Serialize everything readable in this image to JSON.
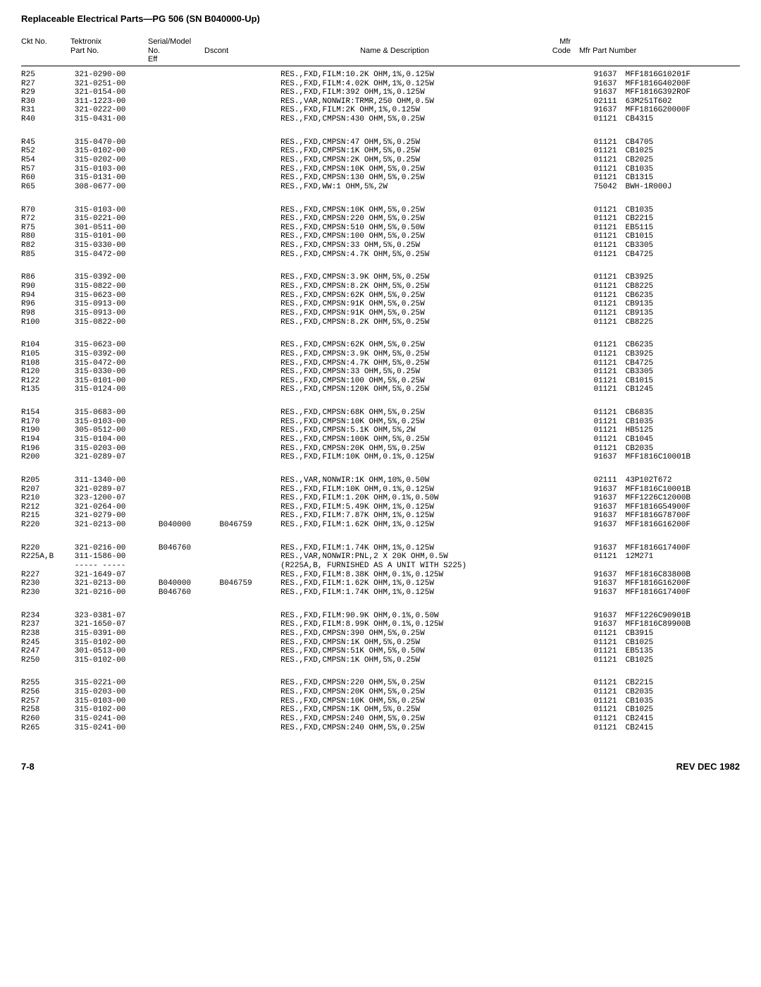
{
  "page_title": "Replaceable Electrical Parts—PG 506 (SN B040000-Up)",
  "header": {
    "ckt": "Ckt No.",
    "tektronix": "Tektronix",
    "part": "Part No.",
    "serial": "Serial/Model No.",
    "eff": "Eff",
    "dscont": "Dscont",
    "name": "Name & Description",
    "mfr": "Mfr",
    "code": "Code",
    "mfrpn": "Mfr Part Number"
  },
  "footer_left": "7-8",
  "footer_right": "REV DEC 1982",
  "groups": [
    [
      {
        "ckt": "R25",
        "part": "321-0290-00",
        "eff": "",
        "dscont": "",
        "desc": "RES.,FXD,FILM:10.2K OHM,1%,0.125W",
        "mfr": "91637",
        "mfrpn": "MFF1816G10201F"
      },
      {
        "ckt": "R27",
        "part": "321-0251-00",
        "eff": "",
        "dscont": "",
        "desc": "RES.,FXD,FILM:4.02K OHM,1%,0.125W",
        "mfr": "91637",
        "mfrpn": "MFF1816G40200F"
      },
      {
        "ckt": "R29",
        "part": "321-0154-00",
        "eff": "",
        "dscont": "",
        "desc": "RES.,FXD,FILM:392 OHM,1%,0.125W",
        "mfr": "91637",
        "mfrpn": "MFF1816G392ROF"
      },
      {
        "ckt": "R30",
        "part": "311-1223-00",
        "eff": "",
        "dscont": "",
        "desc": "RES.,VAR,NONWIR:TRMR,250 OHM,0.5W",
        "mfr": "02111",
        "mfrpn": "63M251T602"
      },
      {
        "ckt": "R31",
        "part": "321-0222-00",
        "eff": "",
        "dscont": "",
        "desc": "RES.,FXD,FILM:2K OHM,1%,0.125W",
        "mfr": "91637",
        "mfrpn": "MFF1816G20000F"
      },
      {
        "ckt": "R40",
        "part": "315-0431-00",
        "eff": "",
        "dscont": "",
        "desc": "RES.,FXD,CMPSN:430 OHM,5%,0.25W",
        "mfr": "01121",
        "mfrpn": "CB4315"
      }
    ],
    [
      {
        "ckt": "R45",
        "part": "315-0470-00",
        "eff": "",
        "dscont": "",
        "desc": "RES.,FXD,CMPSN:47 OHM,5%,0.25W",
        "mfr": "01121",
        "mfrpn": "CB4705"
      },
      {
        "ckt": "R52",
        "part": "315-0102-00",
        "eff": "",
        "dscont": "",
        "desc": "RES.,FXD,CMPSN:1K OHM,5%,0.25W",
        "mfr": "01121",
        "mfrpn": "CB1025"
      },
      {
        "ckt": "R54",
        "part": "315-0202-00",
        "eff": "",
        "dscont": "",
        "desc": "RES.,FXD,CMPSN:2K OHM,5%,0.25W",
        "mfr": "01121",
        "mfrpn": "CB2025"
      },
      {
        "ckt": "R57",
        "part": "315-0103-00",
        "eff": "",
        "dscont": "",
        "desc": "RES.,FXD,CMPSN:10K OHM,5%,0.25W",
        "mfr": "01121",
        "mfrpn": "CB1035"
      },
      {
        "ckt": "R60",
        "part": "315-0131-00",
        "eff": "",
        "dscont": "",
        "desc": "RES.,FXD,CMPSN:130 OHM,5%,0.25W",
        "mfr": "01121",
        "mfrpn": "CB1315"
      },
      {
        "ckt": "R65",
        "part": "308-0677-00",
        "eff": "",
        "dscont": "",
        "desc": "RES.,FXD,WW:1 OHM,5%,2W",
        "mfr": "75042",
        "mfrpn": "BWH-1R000J"
      }
    ],
    [
      {
        "ckt": "R70",
        "part": "315-0103-00",
        "eff": "",
        "dscont": "",
        "desc": "RES.,FXD,CMPSN:10K OHM,5%,0.25W",
        "mfr": "01121",
        "mfrpn": "CB1035"
      },
      {
        "ckt": "R72",
        "part": "315-0221-00",
        "eff": "",
        "dscont": "",
        "desc": "RES.,FXD,CMPSN:220 OHM,5%,0.25W",
        "mfr": "01121",
        "mfrpn": "CB2215"
      },
      {
        "ckt": "R75",
        "part": "301-0511-00",
        "eff": "",
        "dscont": "",
        "desc": "RES.,FXD,CMPSN:510 OHM,5%,0.50W",
        "mfr": "01121",
        "mfrpn": "EB5115"
      },
      {
        "ckt": "R80",
        "part": "315-0101-00",
        "eff": "",
        "dscont": "",
        "desc": "RES.,FXD,CMPSN:100 OHM,5%,0.25W",
        "mfr": "01121",
        "mfrpn": "CB1015"
      },
      {
        "ckt": "R82",
        "part": "315-0330-00",
        "eff": "",
        "dscont": "",
        "desc": "RES.,FXD,CMPSN:33 OHM,5%,0.25W",
        "mfr": "01121",
        "mfrpn": "CB3305"
      },
      {
        "ckt": "R85",
        "part": "315-0472-00",
        "eff": "",
        "dscont": "",
        "desc": "RES.,FXD,CMPSN:4.7K OHM,5%,0.25W",
        "mfr": "01121",
        "mfrpn": "CB4725"
      }
    ],
    [
      {
        "ckt": "R86",
        "part": "315-0392-00",
        "eff": "",
        "dscont": "",
        "desc": "RES.,FXD,CMPSN:3.9K OHM,5%,0.25W",
        "mfr": "01121",
        "mfrpn": "CB3925"
      },
      {
        "ckt": "R90",
        "part": "315-0822-00",
        "eff": "",
        "dscont": "",
        "desc": "RES.,FXD,CMPSN:8.2K OHM,5%,0.25W",
        "mfr": "01121",
        "mfrpn": "CB8225"
      },
      {
        "ckt": "R94",
        "part": "315-0623-00",
        "eff": "",
        "dscont": "",
        "desc": "RES.,FXD,CMPSN:62K OHM,5%,0.25W",
        "mfr": "01121",
        "mfrpn": "CB6235"
      },
      {
        "ckt": "R96",
        "part": "315-0913-00",
        "eff": "",
        "dscont": "",
        "desc": "RES.,FXD,CMPSN:91K OHM,5%,0.25W",
        "mfr": "01121",
        "mfrpn": "CB9135"
      },
      {
        "ckt": "R98",
        "part": "315-0913-00",
        "eff": "",
        "dscont": "",
        "desc": "RES.,FXD,CMPSN:91K OHM,5%,0.25W",
        "mfr": "01121",
        "mfrpn": "CB9135"
      },
      {
        "ckt": "R100",
        "part": "315-0822-00",
        "eff": "",
        "dscont": "",
        "desc": "RES.,FXD,CMPSN:8.2K OHM,5%,0.25W",
        "mfr": "01121",
        "mfrpn": "CB8225"
      }
    ],
    [
      {
        "ckt": "R104",
        "part": "315-0623-00",
        "eff": "",
        "dscont": "",
        "desc": "RES.,FXD,CMPSN:62K OHM,5%,0.25W",
        "mfr": "01121",
        "mfrpn": "CB6235"
      },
      {
        "ckt": "R105",
        "part": "315-0392-00",
        "eff": "",
        "dscont": "",
        "desc": "RES.,FXD,CMPSN:3.9K OHM,5%,0.25W",
        "mfr": "01121",
        "mfrpn": "CB3925"
      },
      {
        "ckt": "R108",
        "part": "315-0472-00",
        "eff": "",
        "dscont": "",
        "desc": "RES.,FXD,CMPSN:4.7K OHM,5%,0.25W",
        "mfr": "01121",
        "mfrpn": "CB4725"
      },
      {
        "ckt": "R120",
        "part": "315-0330-00",
        "eff": "",
        "dscont": "",
        "desc": "RES.,FXD,CMPSN:33 OHM,5%,0.25W",
        "mfr": "01121",
        "mfrpn": "CB3305"
      },
      {
        "ckt": "R122",
        "part": "315-0101-00",
        "eff": "",
        "dscont": "",
        "desc": "RES.,FXD,CMPSN:100 OHM,5%,0.25W",
        "mfr": "01121",
        "mfrpn": "CB1015"
      },
      {
        "ckt": "R135",
        "part": "315-0124-00",
        "eff": "",
        "dscont": "",
        "desc": "RES.,FXD,CMPSN:120K OHM,5%,0.25W",
        "mfr": "01121",
        "mfrpn": "CB1245"
      }
    ],
    [
      {
        "ckt": "R154",
        "part": "315-0683-00",
        "eff": "",
        "dscont": "",
        "desc": "RES.,FXD,CMPSN:68K OHM,5%,0.25W",
        "mfr": "01121",
        "mfrpn": "CB6835"
      },
      {
        "ckt": "R170",
        "part": "315-0103-00",
        "eff": "",
        "dscont": "",
        "desc": "RES.,FXD,CMPSN:10K OHM,5%,0.25W",
        "mfr": "01121",
        "mfrpn": "CB1035"
      },
      {
        "ckt": "R190",
        "part": "305-0512-00",
        "eff": "",
        "dscont": "",
        "desc": "RES.,FXD,CMPSN:5.1K OHM,5%,2W",
        "mfr": "01121",
        "mfrpn": "HB5125"
      },
      {
        "ckt": "R194",
        "part": "315-0104-00",
        "eff": "",
        "dscont": "",
        "desc": "RES.,FXD,CMPSN:100K OHM,5%,0.25W",
        "mfr": "01121",
        "mfrpn": "CB1045"
      },
      {
        "ckt": "R196",
        "part": "315-0203-00",
        "eff": "",
        "dscont": "",
        "desc": "RES.,FXD,CMPSN:20K OHM,5%,0.25W",
        "mfr": "01121",
        "mfrpn": "CB2035"
      },
      {
        "ckt": "R200",
        "part": "321-0289-07",
        "eff": "",
        "dscont": "",
        "desc": "RES.,FXD,FILM:10K OHM,0.1%,0.125W",
        "mfr": "91637",
        "mfrpn": "MFF1816C10001B"
      }
    ],
    [
      {
        "ckt": "R205",
        "part": "311-1340-00",
        "eff": "",
        "dscont": "",
        "desc": "RES.,VAR,NONWIR:1K OHM,10%,0.50W",
        "mfr": "02111",
        "mfrpn": "43P102T672"
      },
      {
        "ckt": "R207",
        "part": "321-0289-07",
        "eff": "",
        "dscont": "",
        "desc": "RES.,FXD,FILM:10K OHM,0.1%,0.125W",
        "mfr": "91637",
        "mfrpn": "MFF1816C10001B"
      },
      {
        "ckt": "R210",
        "part": "323-1200-07",
        "eff": "",
        "dscont": "",
        "desc": "RES.,FXD,FILM:1.20K OHM,0.1%,0.50W",
        "mfr": "91637",
        "mfrpn": "MFF1226C12000B"
      },
      {
        "ckt": "R212",
        "part": "321-0264-00",
        "eff": "",
        "dscont": "",
        "desc": "RES.,FXD,FILM:5.49K OHM,1%,0.125W",
        "mfr": "91637",
        "mfrpn": "MFF1816G54900F"
      },
      {
        "ckt": "R215",
        "part": "321-0279-00",
        "eff": "",
        "dscont": "",
        "desc": "RES.,FXD,FILM:7.87K OHM,1%,0.125W",
        "mfr": "91637",
        "mfrpn": "MFF1816G78700F"
      },
      {
        "ckt": "R220",
        "part": "321-0213-00",
        "eff": "B040000",
        "dscont": "B046759",
        "desc": "RES.,FXD,FILM:1.62K OHM,1%,0.125W",
        "mfr": "91637",
        "mfrpn": "MFF1816G16200F"
      }
    ],
    [
      {
        "ckt": "R220",
        "part": "321-0216-00",
        "eff": "B046760",
        "dscont": "",
        "desc": "RES.,FXD,FILM:1.74K OHM,1%,0.125W",
        "mfr": "91637",
        "mfrpn": "MFF1816G17400F"
      },
      {
        "ckt": "R225A,B",
        "part": "311-1586-00",
        "eff": "",
        "dscont": "",
        "desc": "RES.,VAR,NONWIR:PNL,2 X 20K OHM,0.5W",
        "mfr": "01121",
        "mfrpn": "12M271"
      },
      {
        "ckt": "",
        "part": "----- -----",
        "eff": "",
        "dscont": "",
        "desc": "(R225A,B, FURNISHED AS A UNIT WITH S225)",
        "mfr": "",
        "mfrpn": ""
      },
      {
        "ckt": "R227",
        "part": "321-1649-07",
        "eff": "",
        "dscont": "",
        "desc": "RES.,FXD,FILM:8.38K OHM,0.1%,0.125W",
        "mfr": "91637",
        "mfrpn": "MFF1816C83800B"
      },
      {
        "ckt": "R230",
        "part": "321-0213-00",
        "eff": "B040000",
        "dscont": "B046759",
        "desc": "RES.,FXD,FILM:1.62K OHM,1%,0.125W",
        "mfr": "91637",
        "mfrpn": "MFF1816G16200F"
      },
      {
        "ckt": "R230",
        "part": "321-0216-00",
        "eff": "B046760",
        "dscont": "",
        "desc": "RES.,FXD,FILM:1.74K OHM,1%,0.125W",
        "mfr": "91637",
        "mfrpn": "MFF1816G17400F"
      }
    ],
    [
      {
        "ckt": "R234",
        "part": "323-0381-07",
        "eff": "",
        "dscont": "",
        "desc": "RES.,FXD,FILM:90.9K OHM,0.1%,0.50W",
        "mfr": "91637",
        "mfrpn": "MFF1226C90901B"
      },
      {
        "ckt": "R237",
        "part": "321-1650-07",
        "eff": "",
        "dscont": "",
        "desc": "RES.,FXD,FILM:8.99K OHM,0.1%,0.125W",
        "mfr": "91637",
        "mfrpn": "MFF1816C89900B"
      },
      {
        "ckt": "R238",
        "part": "315-0391-00",
        "eff": "",
        "dscont": "",
        "desc": "RES.,FXD,CMPSN:390 OHM,5%,0.25W",
        "mfr": "01121",
        "mfrpn": "CB3915"
      },
      {
        "ckt": "R245",
        "part": "315-0102-00",
        "eff": "",
        "dscont": "",
        "desc": "RES.,FXD,CMPSN:1K OHM,5%,0.25W",
        "mfr": "01121",
        "mfrpn": "CB1025"
      },
      {
        "ckt": "R247",
        "part": "301-0513-00",
        "eff": "",
        "dscont": "",
        "desc": "RES.,FXD,CMPSN:51K OHM,5%,0.50W",
        "mfr": "01121",
        "mfrpn": "EB5135"
      },
      {
        "ckt": "R250",
        "part": "315-0102-00",
        "eff": "",
        "dscont": "",
        "desc": "RES.,FXD,CMPSN:1K OHM,5%,0.25W",
        "mfr": "01121",
        "mfrpn": "CB1025"
      }
    ],
    [
      {
        "ckt": "R255",
        "part": "315-0221-00",
        "eff": "",
        "dscont": "",
        "desc": "RES.,FXD,CMPSN:220 OHM,5%,0.25W",
        "mfr": "01121",
        "mfrpn": "CB2215"
      },
      {
        "ckt": "R256",
        "part": "315-0203-00",
        "eff": "",
        "dscont": "",
        "desc": "RES.,FXD,CMPSN:20K OHM,5%,0.25W",
        "mfr": "01121",
        "mfrpn": "CB2035"
      },
      {
        "ckt": "R257",
        "part": "315-0103-00",
        "eff": "",
        "dscont": "",
        "desc": "RES.,FXD,CMPSN:10K OHM,5%,0.25W",
        "mfr": "01121",
        "mfrpn": "CB1035"
      },
      {
        "ckt": "R258",
        "part": "315-0102-00",
        "eff": "",
        "dscont": "",
        "desc": "RES.,FXD,CMPSN:1K OHM,5%,0.25W",
        "mfr": "01121",
        "mfrpn": "CB1025"
      },
      {
        "ckt": "R260",
        "part": "315-0241-00",
        "eff": "",
        "dscont": "",
        "desc": "RES.,FXD,CMPSN:240 OHM,5%,0.25W",
        "mfr": "01121",
        "mfrpn": "CB2415"
      },
      {
        "ckt": "R265",
        "part": "315-0241-00",
        "eff": "",
        "dscont": "",
        "desc": "RES.,FXD,CMPSN:240 OHM,5%,0.25W",
        "mfr": "01121",
        "mfrpn": "CB2415"
      }
    ]
  ]
}
